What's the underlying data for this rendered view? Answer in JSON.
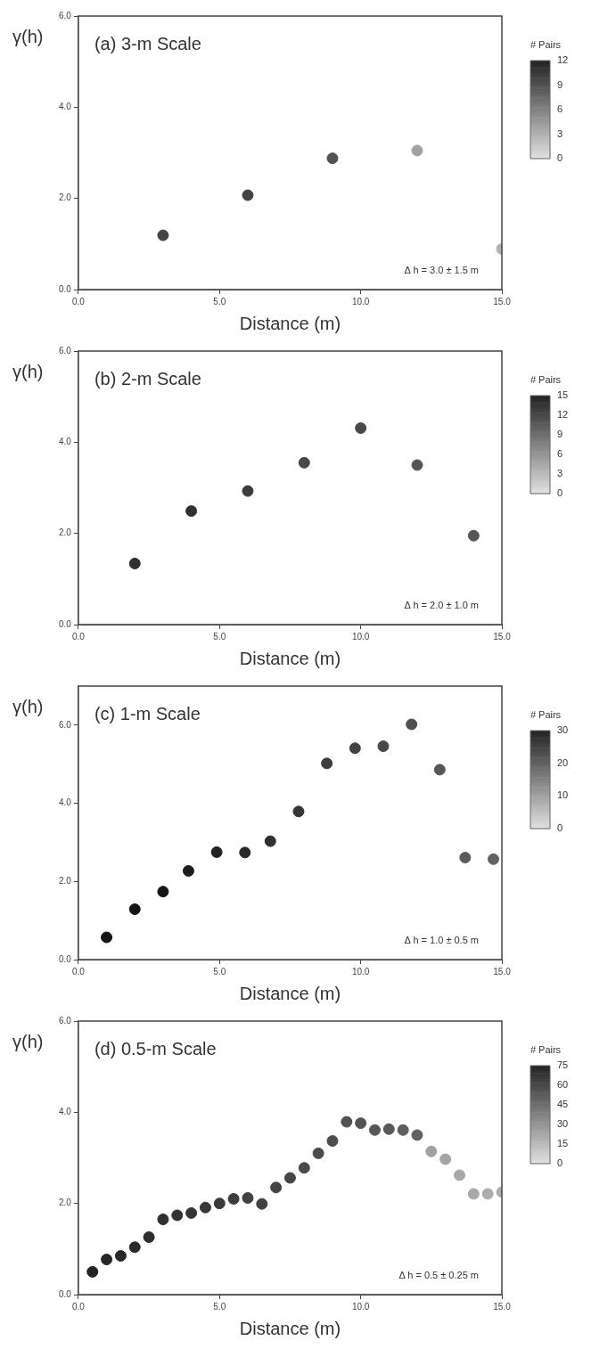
{
  "chart_data": [
    {
      "type": "scatter",
      "title": "(a) 3-m Scale",
      "xlabel": "Distance (m)",
      "ylabel": "γ(h)",
      "clabel": "# Pairs",
      "annotations": [
        "Δ h = 3.0 ± 1.5 m"
      ],
      "x": [
        3,
        6,
        9,
        12,
        15
      ],
      "values": [
        1.19,
        2.07,
        2.88,
        3.05,
        0.89
      ],
      "cvalues": [
        10,
        10,
        9,
        4,
        3
      ],
      "clim": [
        0,
        12
      ],
      "cticks": [
        0,
        3,
        6,
        9,
        12
      ],
      "xlim": [
        0,
        15
      ],
      "xticks": [
        {
          "value": 0,
          "label": "0.0"
        },
        {
          "value": 5,
          "label": "5.0"
        },
        {
          "value": 10,
          "label": "10.0"
        },
        {
          "value": 15,
          "label": "15.0"
        }
      ],
      "ylim": [
        0,
        6
      ],
      "yticks": [
        {
          "value": 0,
          "label": "0.0"
        },
        {
          "value": 2,
          "label": "2.0"
        },
        {
          "value": 4,
          "label": "4.0"
        },
        {
          "value": 6,
          "label": "6.0"
        }
      ],
      "marker": "circle",
      "grid": false,
      "legend": false
    },
    {
      "type": "scatter",
      "title": "(b) 2-m Scale",
      "xlabel": "Distance (m)",
      "ylabel": "γ(h)",
      "clabel": "# Pairs",
      "annotations": [
        "Δ h = 2.0 ± 1.0 m"
      ],
      "x": [
        2,
        4,
        6,
        8,
        10,
        12,
        14
      ],
      "values": [
        1.34,
        2.49,
        2.93,
        3.55,
        4.31,
        3.5,
        1.95
      ],
      "cvalues": [
        14,
        14,
        13,
        12,
        12,
        11,
        11
      ],
      "clim": [
        0,
        15
      ],
      "cticks": [
        0,
        3,
        6,
        9,
        12,
        15
      ],
      "xlim": [
        0,
        15
      ],
      "xticks": [
        {
          "value": 0,
          "label": "0.0"
        },
        {
          "value": 5,
          "label": "5.0"
        },
        {
          "value": 10,
          "label": "10.0"
        },
        {
          "value": 15,
          "label": "15.0"
        }
      ],
      "ylim": [
        0,
        6
      ],
      "yticks": [
        {
          "value": 0,
          "label": "0.0"
        },
        {
          "value": 2,
          "label": "2.0"
        },
        {
          "value": 4,
          "label": "4.0"
        },
        {
          "value": 6,
          "label": "6.0"
        }
      ],
      "marker": "circle",
      "grid": false,
      "legend": false
    },
    {
      "type": "scatter",
      "title": "(c) 1-m Scale",
      "xlabel": "Distance (m)",
      "ylabel": "γ(h)",
      "clabel": "# Pairs",
      "annotations": [
        "Δ h = 1.0 ± 0.5 m"
      ],
      "x": [
        1.0,
        2.0,
        3.0,
        3.9,
        4.9,
        5.9,
        6.8,
        7.8,
        8.8,
        9.8,
        10.8,
        11.8,
        12.8,
        13.7,
        14.7
      ],
      "values": [
        0.57,
        1.29,
        1.74,
        2.27,
        2.75,
        2.74,
        3.03,
        3.79,
        5.02,
        5.41,
        5.46,
        6.02,
        4.86,
        2.61,
        2.57
      ],
      "cvalues": [
        34,
        33,
        32,
        31,
        30,
        29,
        28,
        27,
        26,
        25,
        24,
        23,
        22,
        21,
        20
      ],
      "clim": [
        0,
        30
      ],
      "cticks": [
        0,
        10,
        20,
        30
      ],
      "xlim": [
        0,
        15
      ],
      "xticks": [
        {
          "value": 0,
          "label": "0.0"
        },
        {
          "value": 5,
          "label": "5.0"
        },
        {
          "value": 10,
          "label": "10.0"
        },
        {
          "value": 15,
          "label": "15.0"
        }
      ],
      "ylim": [
        0,
        7
      ],
      "yticks": [
        {
          "value": 0,
          "label": "0.0"
        },
        {
          "value": 2,
          "label": "2.0"
        },
        {
          "value": 4,
          "label": "4.0"
        },
        {
          "value": 6,
          "label": "6.0"
        }
      ],
      "marker": "circle",
      "grid": false,
      "legend": false
    },
    {
      "type": "scatter",
      "title": "(d) 0.5-m Scale",
      "xlabel": "Distance (m)",
      "ylabel": "γ(h)",
      "clabel": "# Pairs",
      "annotations": [
        "Δ h = 0.5 ± 0.25 m"
      ],
      "x": [
        0.5,
        1,
        1.5,
        2,
        2.5,
        3,
        3.5,
        4,
        4.5,
        5,
        5.5,
        6,
        6.5,
        7,
        7.5,
        8,
        8.5,
        9,
        9.5,
        10,
        10.5,
        11,
        11.5,
        12,
        12.5,
        13,
        13.5,
        14,
        14.5,
        15
      ],
      "values": [
        0.5,
        0.77,
        0.85,
        1.04,
        1.26,
        1.65,
        1.74,
        1.79,
        1.91,
        2.0,
        2.1,
        2.12,
        1.99,
        2.35,
        2.56,
        2.78,
        3.1,
        3.37,
        3.79,
        3.76,
        3.61,
        3.63,
        3.61,
        3.5,
        3.14,
        2.97,
        2.62,
        2.21,
        2.21,
        2.25
      ],
      "cvalues": [
        75,
        74,
        73,
        72,
        71,
        70,
        69,
        68,
        67,
        66,
        65,
        64,
        63,
        62,
        61,
        60,
        59,
        58,
        57,
        56,
        55,
        54,
        52,
        50,
        25,
        24,
        23,
        22,
        21,
        20
      ],
      "clim": [
        0,
        75
      ],
      "cticks": [
        0,
        15,
        30,
        45,
        60,
        75
      ],
      "xlim": [
        0,
        15
      ],
      "xticks": [
        {
          "value": 0,
          "label": "0.0"
        },
        {
          "value": 5,
          "label": "5.0"
        },
        {
          "value": 10,
          "label": "10.0"
        },
        {
          "value": 15,
          "label": "15.0"
        }
      ],
      "ylim": [
        0,
        6
      ],
      "yticks": [
        {
          "value": 0,
          "label": "0.0"
        },
        {
          "value": 2,
          "label": "2.0"
        },
        {
          "value": 4,
          "label": "4.0"
        },
        {
          "value": 6,
          "label": "6.0"
        }
      ],
      "marker": "circle",
      "grid": false,
      "legend": false
    }
  ]
}
